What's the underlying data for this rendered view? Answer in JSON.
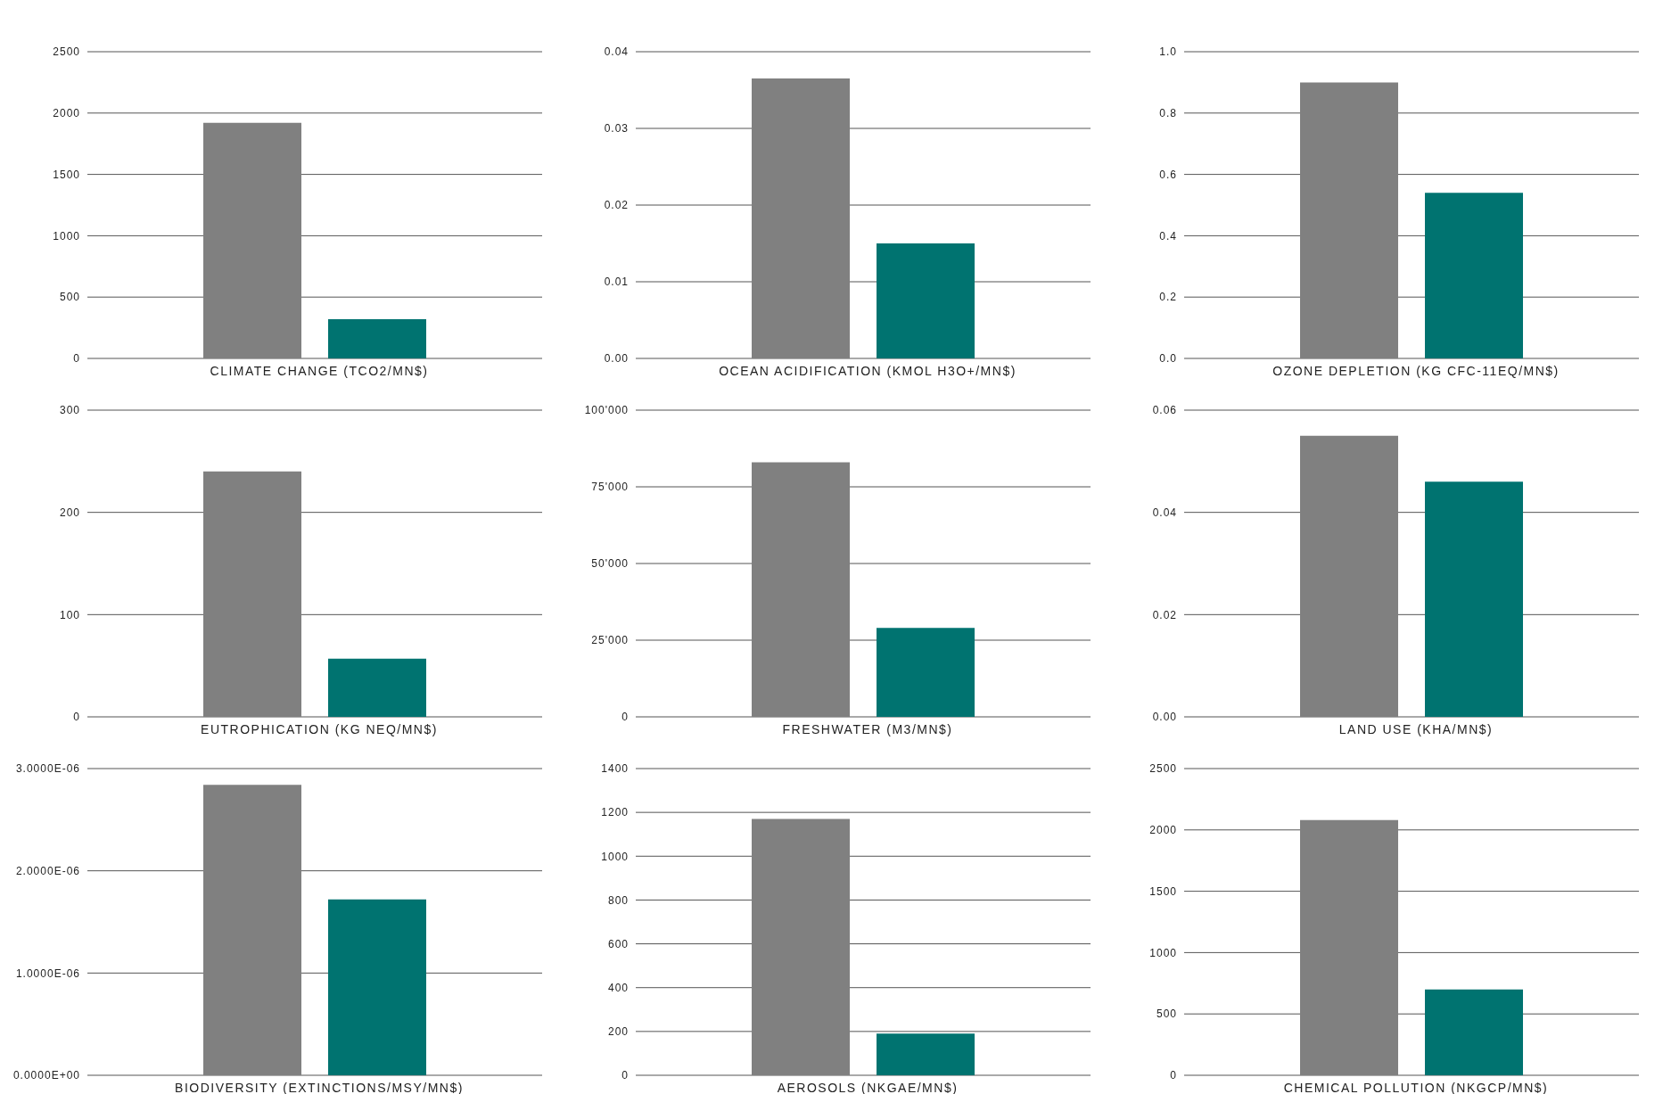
{
  "chart_data": [
    {
      "type": "bar",
      "xlabel": "CLIMATE CHANGE (TCO2/MN$)",
      "categories": [
        null
      ],
      "series": [
        {
          "color": "#808080",
          "values": [
            1920
          ]
        },
        {
          "color": "#007370",
          "values": [
            320
          ]
        }
      ],
      "ylim": [
        0,
        2500
      ],
      "yticks": [
        0,
        500,
        1000,
        1500,
        2000,
        2500
      ],
      "grid": "y"
    },
    {
      "type": "bar",
      "xlabel": "OCEAN ACIDIFICATION (KMOL H3O+/MN$)",
      "categories": [
        null
      ],
      "series": [
        {
          "color": "#808080",
          "values": [
            0.0365
          ]
        },
        {
          "color": "#007370",
          "values": [
            0.015
          ]
        }
      ],
      "ylim": [
        0,
        0.04
      ],
      "yticks": [
        {
          "value": 0,
          "label": "0.00"
        },
        0.01,
        0.02,
        0.03,
        0.04
      ],
      "grid": "y"
    },
    {
      "type": "bar",
      "xlabel": "OZONE DEPLETION (KG CFC-11EQ/MN$)",
      "categories": [
        null
      ],
      "series": [
        {
          "color": "#808080",
          "values": [
            0.9
          ]
        },
        {
          "color": "#007370",
          "values": [
            0.54
          ]
        }
      ],
      "ylim": [
        0,
        1
      ],
      "yticks": [
        {
          "value": 0,
          "label": "0.0"
        },
        0.2,
        0.4,
        0.6,
        0.8,
        {
          "value": 1,
          "label": "1.0"
        }
      ],
      "grid": "y"
    },
    {
      "type": "bar",
      "xlabel": "EUTROPHICATION (KG NEQ/MN$)",
      "categories": [
        null
      ],
      "series": [
        {
          "color": "#808080",
          "values": [
            240
          ]
        },
        {
          "color": "#007370",
          "values": [
            57
          ]
        }
      ],
      "ylim": [
        0,
        300
      ],
      "yticks": [
        0,
        100,
        200,
        300
      ],
      "grid": "y"
    },
    {
      "type": "bar",
      "xlabel": "FRESHWATER  (M3/MN$)",
      "categories": [
        null
      ],
      "series": [
        {
          "color": "#808080",
          "values": [
            83000
          ]
        },
        {
          "color": "#007370",
          "values": [
            29000
          ]
        }
      ],
      "ylim": [
        0,
        100000
      ],
      "yticks": [
        0,
        {
          "value": 25000,
          "label": "25'000"
        },
        {
          "value": 50000,
          "label": "50'000"
        },
        {
          "value": 75000,
          "label": "75'000"
        },
        {
          "value": 100000,
          "label": "100'000"
        }
      ],
      "grid": "y"
    },
    {
      "type": "bar",
      "xlabel": "LAND  USE (KHA/MN$)",
      "categories": [
        null
      ],
      "series": [
        {
          "color": "#808080",
          "values": [
            0.055
          ]
        },
        {
          "color": "#007370",
          "values": [
            0.046
          ]
        }
      ],
      "ylim": [
        0,
        0.06
      ],
      "yticks": [
        {
          "value": 0,
          "label": "0.00"
        },
        0.02,
        0.04,
        0.06
      ],
      "grid": "y"
    },
    {
      "type": "bar",
      "xlabel": "BIODIVERSITY (EXTINCTIONS/MSY/MN$)",
      "categories": [
        null
      ],
      "series": [
        {
          "color": "#808080",
          "values": [
            2.84e-06
          ]
        },
        {
          "color": "#007370",
          "values": [
            1.72e-06
          ]
        }
      ],
      "ylim": [
        0,
        3e-06
      ],
      "yticks": [
        {
          "value": 0,
          "label": "0.0000E+00"
        },
        {
          "value": 1e-06,
          "label": "1.0000E-06"
        },
        {
          "value": 2e-06,
          "label": "2.0000E-06"
        },
        {
          "value": 3e-06,
          "label": "3.0000E-06"
        }
      ],
      "grid": "y"
    },
    {
      "type": "bar",
      "xlabel": "AEROSOLS (NKGAE/MN$)",
      "categories": [
        null
      ],
      "series": [
        {
          "color": "#808080",
          "values": [
            1170
          ]
        },
        {
          "color": "#007370",
          "values": [
            190
          ]
        }
      ],
      "ylim": [
        0,
        1400
      ],
      "yticks": [
        0,
        200,
        400,
        600,
        800,
        1000,
        1200,
        1400
      ],
      "grid": "y"
    },
    {
      "type": "bar",
      "xlabel": "CHEMICAL  POLLUTION (NKGCP/MN$)",
      "categories": [
        null
      ],
      "series": [
        {
          "color": "#808080",
          "values": [
            2080
          ]
        },
        {
          "color": "#007370",
          "values": [
            700
          ]
        }
      ],
      "ylim": [
        0,
        2500
      ],
      "yticks": [
        0,
        500,
        1000,
        1500,
        2000,
        2500
      ],
      "grid": "y"
    }
  ]
}
